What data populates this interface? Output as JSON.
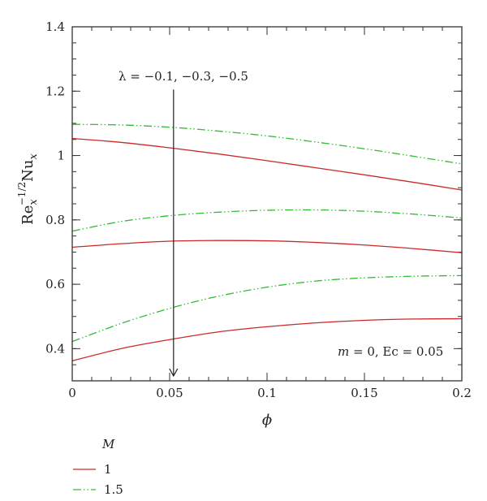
{
  "chart_data": {
    "type": "line",
    "xlabel": "ϕ",
    "ylabel": {
      "base": "Re",
      "sub1": "x",
      "sup": "−1/2",
      "mid": "Nu",
      "sub2": "x"
    },
    "xlim": [
      0,
      0.2
    ],
    "ylim": [
      0.3,
      1.4
    ],
    "x_ticks": [
      0,
      0.05,
      0.1,
      0.15,
      0.2
    ],
    "x_tick_labels": [
      "0",
      "0.05",
      "0.1",
      "0.15",
      "0.2"
    ],
    "y_ticks": [
      0.4,
      0.6,
      0.8,
      1.0,
      1.2,
      1.4
    ],
    "y_tick_labels": [
      "0.4",
      "0.6",
      "0.8",
      "1",
      "1.2",
      "1.4"
    ],
    "annotation_lambda": "λ = −0.1, −0.3, −0.5",
    "annotation_params": {
      "m_symbol": "m",
      "m_text": " = 0, Ec = 0.05"
    },
    "arrow": {
      "x": 0.052,
      "y_start": 1.205,
      "y_end": 0.315
    },
    "legend": {
      "title": "M",
      "entries": [
        "1",
        "1.5"
      ]
    },
    "colors": {
      "M1": "#cc2a2a",
      "M15": "#33bb33",
      "frame": "#333333"
    },
    "series": [
      {
        "name": "1",
        "style": "solid",
        "color": "#cc2a2a",
        "x": [
          0,
          0.025,
          0.05,
          0.075,
          0.1,
          0.125,
          0.15,
          0.175,
          0.2
        ],
        "y": [
          1.053,
          1.041,
          1.024,
          1.005,
          0.984,
          0.962,
          0.94,
          0.917,
          0.893
        ]
      },
      {
        "name": "1",
        "style": "solid",
        "color": "#cc2a2a",
        "x": [
          0,
          0.025,
          0.05,
          0.075,
          0.1,
          0.125,
          0.15,
          0.175,
          0.2
        ],
        "y": [
          0.715,
          0.726,
          0.734,
          0.736,
          0.735,
          0.73,
          0.722,
          0.711,
          0.698
        ]
      },
      {
        "name": "1",
        "style": "solid",
        "color": "#cc2a2a",
        "x": [
          0,
          0.025,
          0.05,
          0.075,
          0.1,
          0.125,
          0.15,
          0.175,
          0.2
        ],
        "y": [
          0.362,
          0.4,
          0.428,
          0.452,
          0.468,
          0.48,
          0.488,
          0.492,
          0.493
        ]
      },
      {
        "name": "1.5",
        "style": "dashdotdot",
        "color": "#33bb33",
        "x": [
          0,
          0.025,
          0.05,
          0.075,
          0.1,
          0.125,
          0.15,
          0.175,
          0.2
        ],
        "y": [
          1.097,
          1.095,
          1.088,
          1.076,
          1.061,
          1.042,
          1.021,
          0.998,
          0.974
        ]
      },
      {
        "name": "1.5",
        "style": "dashdotdot",
        "color": "#33bb33",
        "x": [
          0,
          0.025,
          0.05,
          0.075,
          0.1,
          0.125,
          0.15,
          0.175,
          0.2
        ],
        "y": [
          0.765,
          0.795,
          0.813,
          0.824,
          0.83,
          0.831,
          0.827,
          0.818,
          0.806
        ]
      },
      {
        "name": "1.5",
        "style": "dashdotdot",
        "color": "#33bb33",
        "x": [
          0,
          0.025,
          0.05,
          0.075,
          0.1,
          0.125,
          0.15,
          0.175,
          0.2
        ],
        "y": [
          0.422,
          0.478,
          0.525,
          0.563,
          0.591,
          0.61,
          0.62,
          0.625,
          0.627
        ]
      }
    ]
  }
}
